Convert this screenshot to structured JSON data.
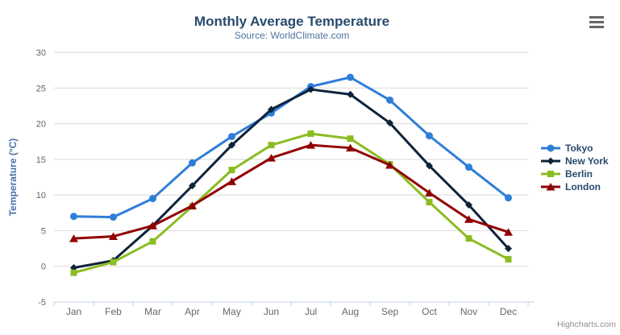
{
  "chart": {
    "title": "Monthly Average Temperature",
    "subtitle": "Source: WorldClimate.com",
    "credits": "Highcharts.com"
  },
  "chart_data": {
    "type": "line",
    "title": "Monthly Average Temperature",
    "subtitle": "Source: WorldClimate.com",
    "categories": [
      "Jan",
      "Feb",
      "Mar",
      "Apr",
      "May",
      "Jun",
      "Jul",
      "Aug",
      "Sep",
      "Oct",
      "Nov",
      "Dec"
    ],
    "series": [
      {
        "name": "Tokyo",
        "color": "#2f7ed8",
        "symbol": "circle",
        "values": [
          7.0,
          6.9,
          9.5,
          14.5,
          18.2,
          21.5,
          25.2,
          26.5,
          23.3,
          18.3,
          13.9,
          9.6
        ]
      },
      {
        "name": "New York",
        "color": "#0d233a",
        "symbol": "diamond",
        "values": [
          -0.2,
          0.8,
          5.7,
          11.3,
          17.0,
          22.0,
          24.8,
          24.1,
          20.1,
          14.1,
          8.6,
          2.5
        ]
      },
      {
        "name": "Berlin",
        "color": "#8bbc21",
        "symbol": "square",
        "values": [
          -0.9,
          0.6,
          3.5,
          8.4,
          13.5,
          17.0,
          18.6,
          17.9,
          14.3,
          9.0,
          3.9,
          1.0
        ]
      },
      {
        "name": "London",
        "color": "#910000",
        "symbol": "triangle",
        "values": [
          3.9,
          4.2,
          5.7,
          8.5,
          11.9,
          15.2,
          17.0,
          16.6,
          14.2,
          10.3,
          6.6,
          4.8
        ]
      }
    ],
    "xlabel": "",
    "ylabel": "Temperature (°C)",
    "ylim": [
      -5,
      30
    ],
    "yticks": [
      -5,
      0,
      5,
      10,
      15,
      20,
      25,
      30
    ],
    "grid": "horizontal",
    "legend_position": "right",
    "colors": {
      "grid_line": "#d8d8d8",
      "axis_line": "#c0d0e0",
      "title_text": "#274b6d",
      "axis_title_text": "#4572a7",
      "tick_text": "#666666",
      "credits_text": "#909090"
    }
  }
}
